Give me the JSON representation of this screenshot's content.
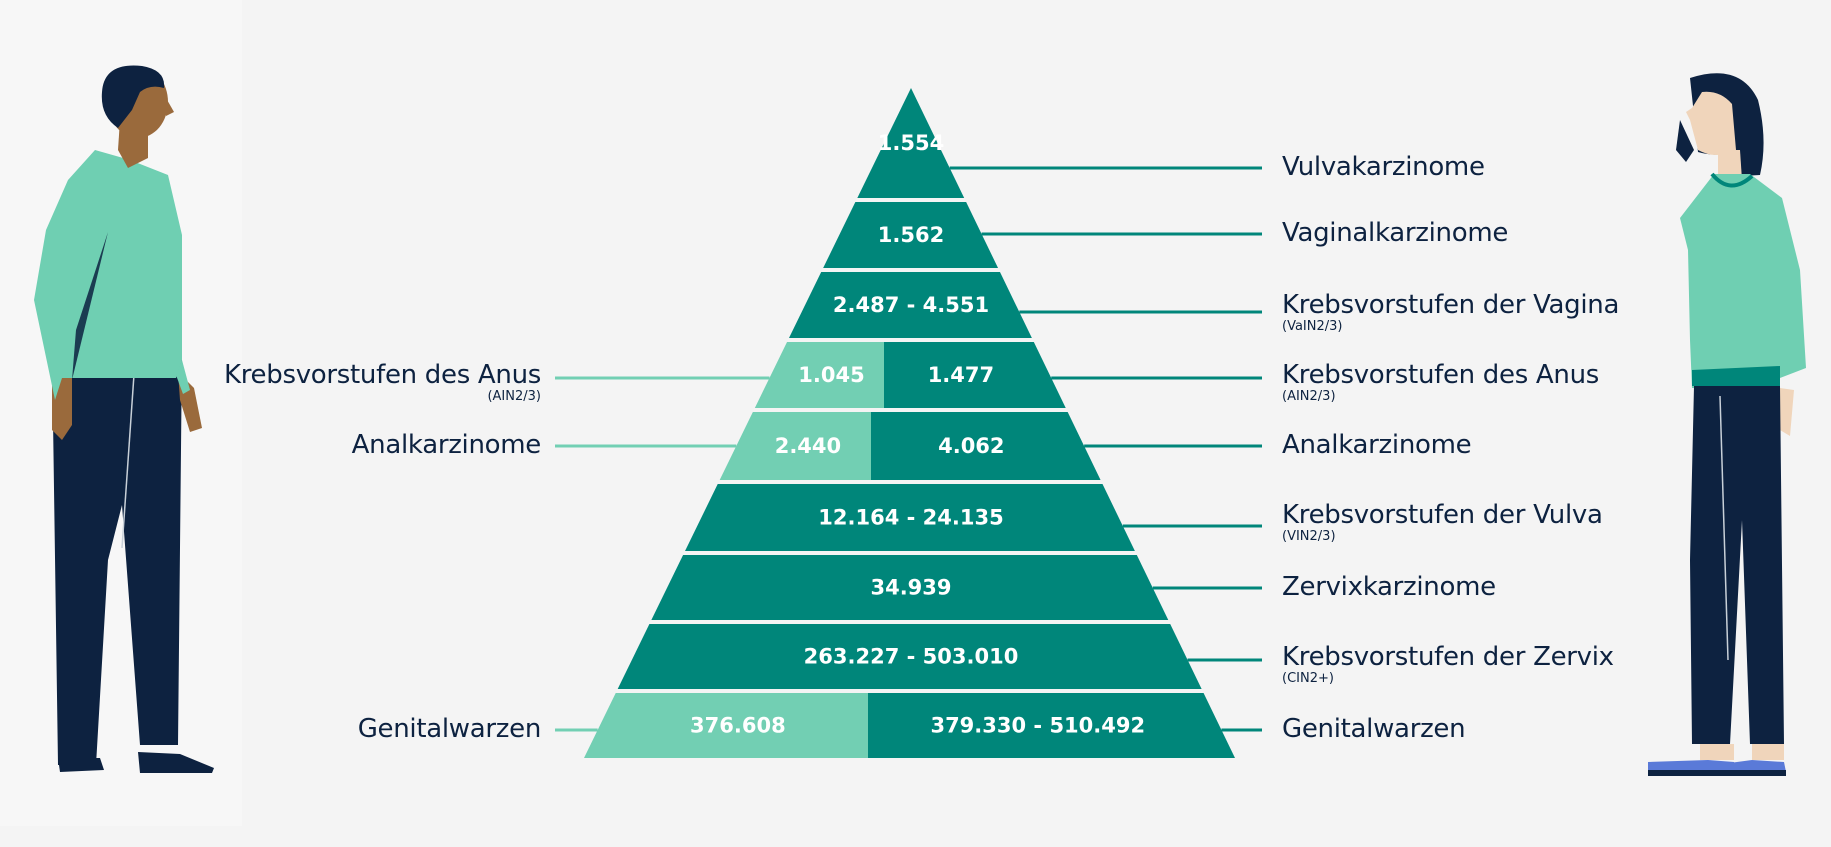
{
  "colors": {
    "dark_teal": "#00867a",
    "light_teal": "#72cfb3",
    "navy": "#0d2240",
    "background": "#f4f4f4",
    "panel": "#f7f7f7"
  },
  "rows": [
    {
      "id": "row-1",
      "both": "1.554",
      "right_label": "Vulvakarzinome",
      "right_sub": ""
    },
    {
      "id": "row-2",
      "both": "1.562",
      "right_label": "Vaginalkarzinome",
      "right_sub": ""
    },
    {
      "id": "row-3",
      "both": "2.487 - 4.551",
      "right_label": "Krebsvorstufen der Vagina",
      "right_sub": "(VaIN2/3)"
    },
    {
      "id": "row-4",
      "male": "1.045",
      "female": "1.477",
      "left_label": "Krebsvorstufen des Anus",
      "left_sub": "(AIN2/3)",
      "right_label": "Krebsvorstufen des Anus",
      "right_sub": "(AIN2/3)"
    },
    {
      "id": "row-5",
      "male": "2.440",
      "female": "4.062",
      "left_label": "Analkarzinome",
      "left_sub": "",
      "right_label": "Analkarzinome",
      "right_sub": ""
    },
    {
      "id": "row-6",
      "both": "12.164 - 24.135",
      "right_label": "Krebsvorstufen der Vulva",
      "right_sub": "(VIN2/3)"
    },
    {
      "id": "row-7",
      "both": "34.939",
      "right_label": "Zervixkarzinome",
      "right_sub": ""
    },
    {
      "id": "row-8",
      "both": "263.227 - 503.010",
      "right_label": "Krebsvorstufen der Zervix",
      "right_sub": "(CIN2+)"
    },
    {
      "id": "row-9",
      "male": "376.608",
      "female": "379.330 - 510.492",
      "left_label": "Genitalwarzen",
      "left_sub": "",
      "right_label": "Genitalwarzen",
      "right_sub": ""
    }
  ],
  "figures": {
    "left": "man-figure-icon",
    "right": "woman-figure-icon"
  }
}
